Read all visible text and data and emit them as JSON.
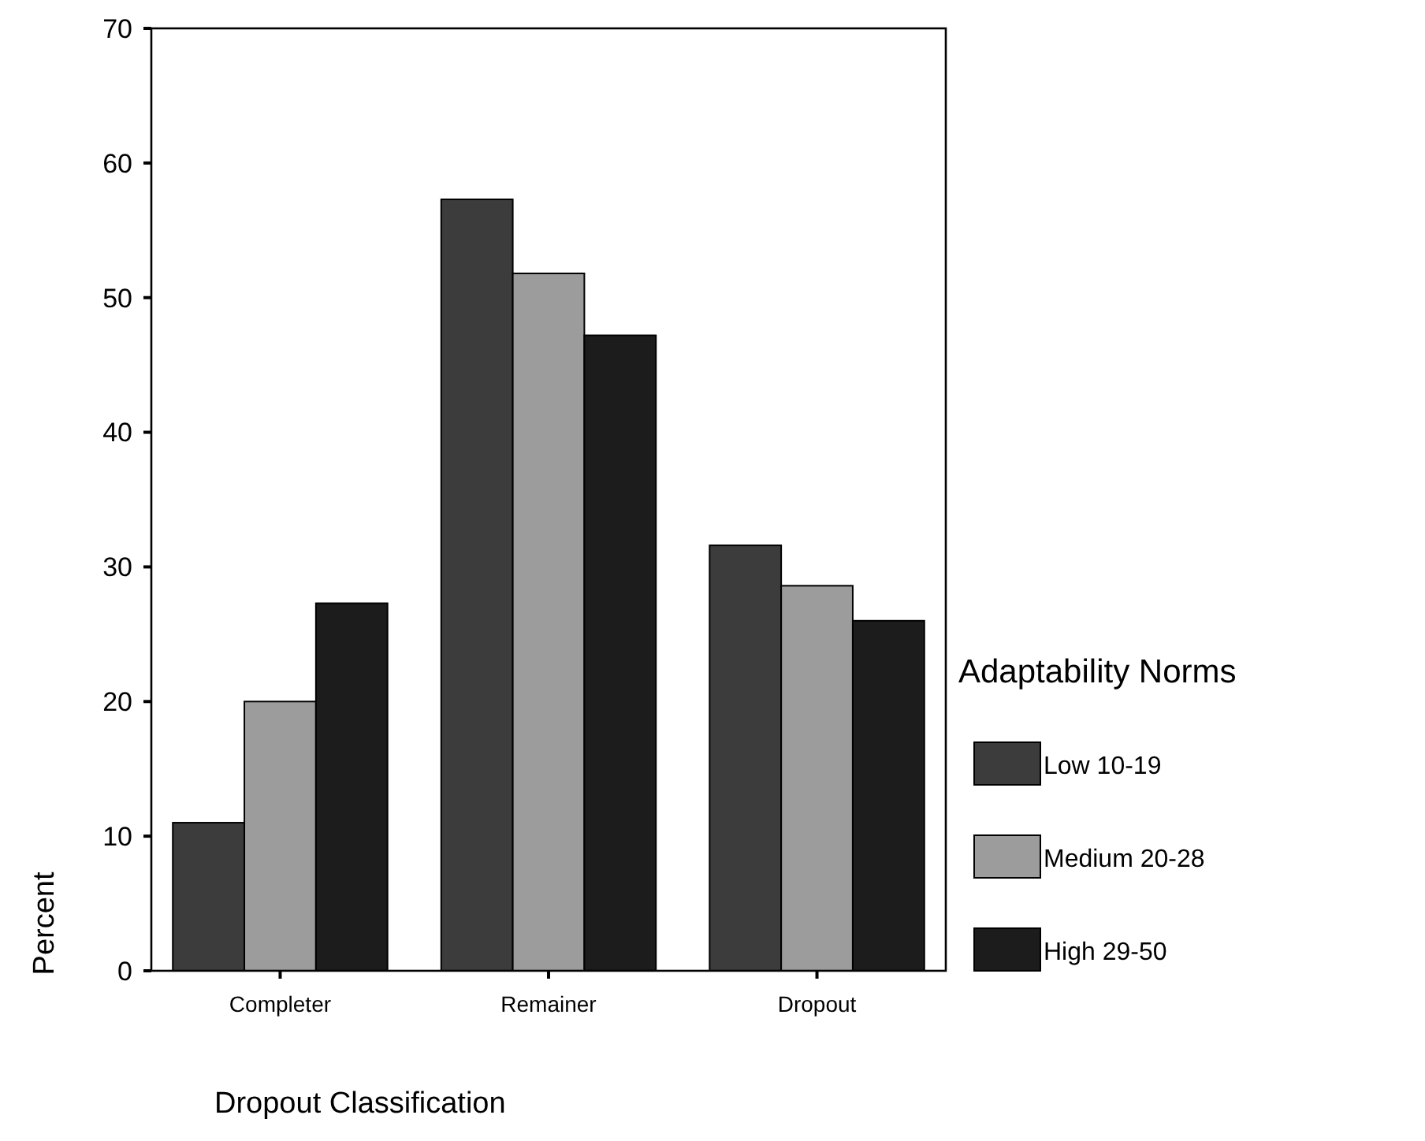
{
  "chart_data": {
    "type": "bar",
    "xlabel": "Dropout Classification",
    "ylabel": "Percent",
    "legend_title": "Adaptability Norms",
    "categories": [
      "Completer",
      "Remainer",
      "Dropout"
    ],
    "series": [
      {
        "name": "Low  10-19",
        "color": "#3c3c3c",
        "values": [
          11,
          57.3,
          31.6
        ]
      },
      {
        "name": "Medium 20-28",
        "color": "#9c9c9c",
        "values": [
          20,
          51.8,
          28.6
        ]
      },
      {
        "name": "High 29-50",
        "color": "#1c1c1c",
        "values": [
          27.3,
          47.2,
          26
        ]
      }
    ],
    "ylim": [
      0,
      70
    ],
    "yticks": [
      0,
      10,
      20,
      30,
      40,
      50,
      60,
      70
    ],
    "grid": false,
    "legend": "right"
  }
}
